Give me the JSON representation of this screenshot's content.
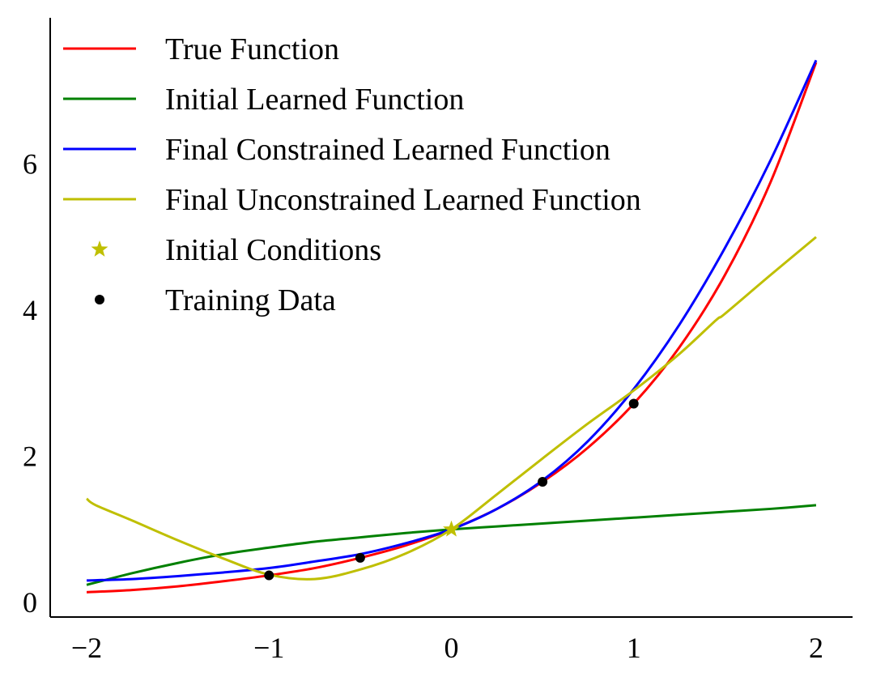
{
  "chart_data": {
    "type": "line",
    "title": "",
    "xlabel": "",
    "ylabel": "",
    "xlim": [
      -2.2,
      2.2
    ],
    "ylim": [
      -0.2,
      8.0
    ],
    "xticks": [
      {
        "value": -2,
        "label": "−2"
      },
      {
        "value": -1,
        "label": "−1"
      },
      {
        "value": 0,
        "label": "0"
      },
      {
        "value": 1,
        "label": "1"
      },
      {
        "value": 2,
        "label": "2"
      }
    ],
    "yticks": [
      {
        "value": 0,
        "label": "0"
      },
      {
        "value": 2,
        "label": "2"
      },
      {
        "value": 4,
        "label": "4"
      },
      {
        "value": 6,
        "label": "6"
      }
    ],
    "grid": false,
    "legend_position": "top-left",
    "series": [
      {
        "name": "True Function",
        "color": "#ff0000",
        "x": [
          -2,
          -1.75,
          -1.5,
          -1.25,
          -1,
          -0.75,
          -0.5,
          -0.25,
          0,
          0.25,
          0.5,
          0.75,
          1,
          1.25,
          1.5,
          1.75,
          2
        ],
        "y": [
          0.14,
          0.17,
          0.22,
          0.29,
          0.37,
          0.47,
          0.61,
          0.78,
          1.0,
          1.28,
          1.65,
          2.12,
          2.72,
          3.49,
          4.48,
          5.75,
          7.39
        ]
      },
      {
        "name": "Initial Learned Function",
        "color": "#008000",
        "x": [
          -2,
          -1.75,
          -1.5,
          -1.25,
          -1,
          -0.75,
          -0.5,
          -0.25,
          0,
          0.25,
          0.5,
          0.75,
          1,
          1.25,
          1.5,
          1.75,
          2
        ],
        "y": [
          0.24,
          0.4,
          0.54,
          0.66,
          0.75,
          0.83,
          0.89,
          0.95,
          1.0,
          1.04,
          1.08,
          1.12,
          1.16,
          1.2,
          1.24,
          1.28,
          1.33
        ]
      },
      {
        "name": "Final Constrained Learned Function",
        "color": "#0000ff",
        "x": [
          -2,
          -1.75,
          -1.5,
          -1.25,
          -1,
          -0.75,
          -0.5,
          -0.25,
          0,
          0.25,
          0.5,
          0.75,
          1,
          1.25,
          1.5,
          1.75,
          2
        ],
        "y": [
          0.3,
          0.32,
          0.36,
          0.41,
          0.47,
          0.56,
          0.66,
          0.81,
          1.0,
          1.28,
          1.67,
          2.21,
          2.92,
          3.8,
          4.85,
          6.05,
          7.42
        ]
      },
      {
        "name": "Final Unconstrained Learned Function",
        "color": "#bfbf00",
        "x": [
          -2,
          -1.95,
          -1.75,
          -1.5,
          -1.25,
          -1,
          -0.75,
          -0.5,
          -0.25,
          0,
          0.25,
          0.5,
          0.75,
          1,
          1.25,
          1.45,
          1.5,
          1.75,
          2
        ],
        "y": [
          1.42,
          1.33,
          1.12,
          0.85,
          0.6,
          0.38,
          0.32,
          0.45,
          0.67,
          1.0,
          1.48,
          1.97,
          2.45,
          2.9,
          3.4,
          3.86,
          3.95,
          4.48,
          5.0
        ]
      }
    ],
    "markers": [
      {
        "name": "Initial Conditions",
        "color": "#bfbf00",
        "shape": "star",
        "points": [
          {
            "x": 0,
            "y": 1.0
          }
        ]
      },
      {
        "name": "Training Data",
        "color": "#000000",
        "shape": "dot",
        "points": [
          {
            "x": -1,
            "y": 0.37
          },
          {
            "x": -0.5,
            "y": 0.61
          },
          {
            "x": 0.5,
            "y": 1.65
          },
          {
            "x": 1,
            "y": 2.72
          }
        ]
      }
    ]
  }
}
